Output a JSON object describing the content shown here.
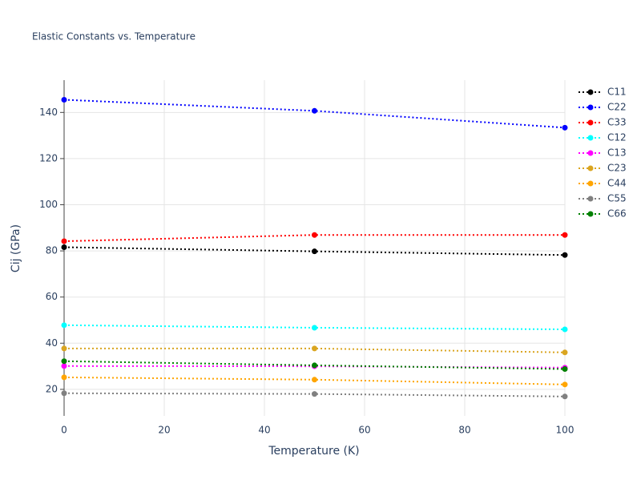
{
  "chart_data": {
    "type": "line",
    "title": "Elastic Constants vs. Temperature",
    "x_label": "Temperature (K)",
    "y_label": "Cij (GPa)",
    "x": [
      0,
      50,
      100
    ],
    "series": [
      {
        "name": "C11",
        "color": "#000000",
        "values": [
          81.6,
          79.8,
          78.2
        ]
      },
      {
        "name": "C22",
        "color": "#0000ff",
        "values": [
          145.5,
          140.7,
          133.4
        ]
      },
      {
        "name": "C33",
        "color": "#ff0000",
        "values": [
          84.2,
          86.9,
          86.9
        ]
      },
      {
        "name": "C12",
        "color": "#00ffff",
        "values": [
          47.8,
          46.7,
          46.0
        ]
      },
      {
        "name": "C13",
        "color": "#ff00ff",
        "values": [
          30.1,
          30.0,
          29.4
        ]
      },
      {
        "name": "C23",
        "color": "#daa520",
        "values": [
          37.7,
          37.7,
          36.0
        ]
      },
      {
        "name": "C44",
        "color": "#ffa500",
        "values": [
          25.2,
          24.2,
          22.1
        ]
      },
      {
        "name": "C55",
        "color": "#808080",
        "values": [
          18.3,
          18.0,
          16.9
        ]
      },
      {
        "name": "C66",
        "color": "#008000",
        "values": [
          32.2,
          30.4,
          28.8
        ]
      }
    ],
    "xlim": [
      0,
      100
    ],
    "xticks": [
      0,
      20,
      40,
      60,
      80,
      100
    ],
    "ylim": [
      8.5,
      154
    ],
    "yticks": [
      20,
      40,
      60,
      80,
      100,
      120,
      140
    ],
    "grid": true,
    "legend": "right"
  }
}
